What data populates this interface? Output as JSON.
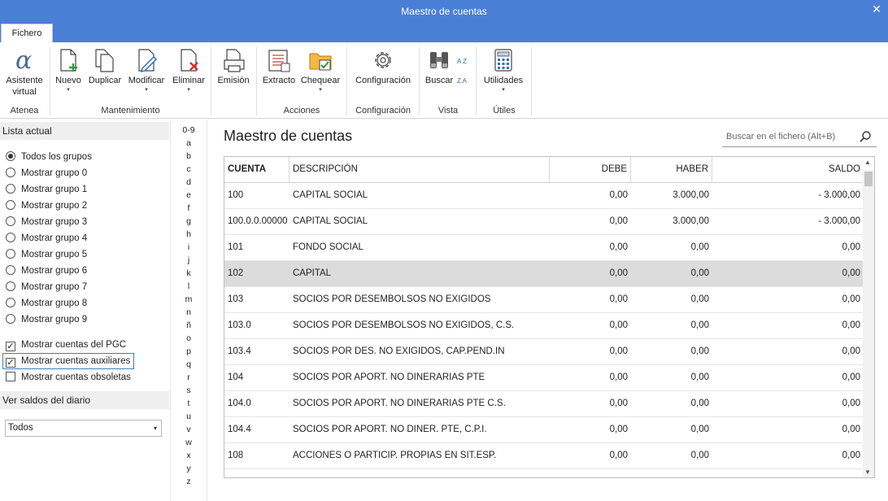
{
  "window": {
    "title": "Maestro de cuentas",
    "close_glyph": "✕"
  },
  "tabs": [
    {
      "label": "Fichero"
    }
  ],
  "ribbon": {
    "buttons": {
      "asistente": {
        "label1": "Asistente",
        "label2": "virtual",
        "icon": "alpha-icon"
      },
      "nuevo": {
        "label": "Nuevo",
        "icon": "new-document-icon"
      },
      "duplicar": {
        "label": "Duplicar",
        "icon": "duplicate-icon"
      },
      "modificar": {
        "label": "Modificar",
        "icon": "edit-document-icon"
      },
      "eliminar": {
        "label": "Eliminar",
        "icon": "delete-document-icon"
      },
      "emision": {
        "label": "Emisión",
        "icon": "printer-icon"
      },
      "extracto": {
        "label": "Extracto",
        "icon": "ledger-icon"
      },
      "chequear": {
        "label": "Chequear",
        "icon": "check-folder-icon"
      },
      "configuracion": {
        "label": "Configuración",
        "icon": "gear-icon"
      },
      "buscar": {
        "label": "Buscar",
        "icon": "binoculars-icon"
      },
      "utilidades": {
        "label": "Utilidades",
        "icon": "calculator-icon"
      }
    },
    "groups": {
      "atenea": "Atenea",
      "mantenimiento": "Mantenimiento",
      "acciones": "Acciones",
      "configuracion": "Configuración",
      "vista": "Vista",
      "utiles": "Útiles"
    },
    "sort_az": "A Z",
    "sort_za": "Z A",
    "dropdown_glyph": "▾"
  },
  "left": {
    "lista_actual": "Lista actual",
    "groups": [
      {
        "label": "Todos los grupos",
        "selected": true
      },
      {
        "label": "Mostrar grupo 0",
        "selected": false
      },
      {
        "label": "Mostrar grupo 1",
        "selected": false
      },
      {
        "label": "Mostrar grupo 2",
        "selected": false
      },
      {
        "label": "Mostrar grupo 3",
        "selected": false
      },
      {
        "label": "Mostrar grupo 4",
        "selected": false
      },
      {
        "label": "Mostrar grupo 5",
        "selected": false
      },
      {
        "label": "Mostrar grupo 6",
        "selected": false
      },
      {
        "label": "Mostrar grupo 7",
        "selected": false
      },
      {
        "label": "Mostrar grupo 8",
        "selected": false
      },
      {
        "label": "Mostrar grupo 9",
        "selected": false
      }
    ],
    "checks": [
      {
        "label": "Mostrar cuentas del PGC",
        "checked": true
      },
      {
        "label": "Mostrar cuentas auxiliares",
        "checked": true
      },
      {
        "label": "Mostrar cuentas obsoletas",
        "checked": false
      }
    ],
    "saldos_header": "Ver saldos del diario",
    "saldos_value": "Todos"
  },
  "alphabet": [
    "0-9",
    "a",
    "b",
    "c",
    "d",
    "e",
    "f",
    "g",
    "h",
    "i",
    "j",
    "k",
    "l",
    "m",
    "n",
    "ñ",
    "o",
    "p",
    "q",
    "r",
    "s",
    "t",
    "u",
    "v",
    "w",
    "x",
    "y",
    "z"
  ],
  "main": {
    "title": "Maestro de cuentas",
    "search_placeholder": "Buscar en el fichero (Alt+B)",
    "columns": [
      "CUENTA",
      "DESCRIPCIÓN",
      "DEBE",
      "HABER",
      "SALDO"
    ],
    "rows": [
      {
        "cuenta": "100",
        "descripcion": "CAPITAL SOCIAL",
        "debe": "0,00",
        "haber": "3.000,00",
        "saldo": "- 3.000,00"
      },
      {
        "cuenta": "100.0.0.00000",
        "descripcion": "CAPITAL SOCIAL",
        "debe": "0,00",
        "haber": "3.000,00",
        "saldo": "- 3.000,00"
      },
      {
        "cuenta": "101",
        "descripcion": "FONDO SOCIAL",
        "debe": "0,00",
        "haber": "0,00",
        "saldo": "0,00"
      },
      {
        "cuenta": "102",
        "descripcion": "CAPITAL",
        "debe": "0,00",
        "haber": "0,00",
        "saldo": "0,00",
        "selected": true
      },
      {
        "cuenta": "103",
        "descripcion": "SOCIOS POR DESEMBOLSOS NO EXIGIDOS",
        "debe": "0,00",
        "haber": "0,00",
        "saldo": "0,00"
      },
      {
        "cuenta": "103.0",
        "descripcion": "SOCIOS POR DESEMBOLSOS NO EXIGIDOS, C.S.",
        "debe": "0,00",
        "haber": "0,00",
        "saldo": "0,00"
      },
      {
        "cuenta": "103.4",
        "descripcion": "SOCIOS POR DES. NO EXIGIDOS, CAP.PEND.IN",
        "debe": "0,00",
        "haber": "0,00",
        "saldo": "0,00"
      },
      {
        "cuenta": "104",
        "descripcion": "SOCIOS POR APORT. NO DINERARIAS PTE",
        "debe": "0,00",
        "haber": "0,00",
        "saldo": "0,00"
      },
      {
        "cuenta": "104.0",
        "descripcion": "SOCIOS POR APORT. NO DINERARIAS PTE C.S.",
        "debe": "0,00",
        "haber": "0,00",
        "saldo": "0,00"
      },
      {
        "cuenta": "104.4",
        "descripcion": "SOCIOS POR APORT. NO DINER. PTE, C.P.I.",
        "debe": "0,00",
        "haber": "0,00",
        "saldo": "0,00"
      },
      {
        "cuenta": "108",
        "descripcion": "ACCIONES O PARTICIP. PROPIAS EN SIT.ESP.",
        "debe": "0,00",
        "haber": "0,00",
        "saldo": "0,00"
      }
    ]
  },
  "colors": {
    "accent": "#4a7fd6",
    "selected_row": "#dcdcdc",
    "focus": "#3b7ec4"
  }
}
